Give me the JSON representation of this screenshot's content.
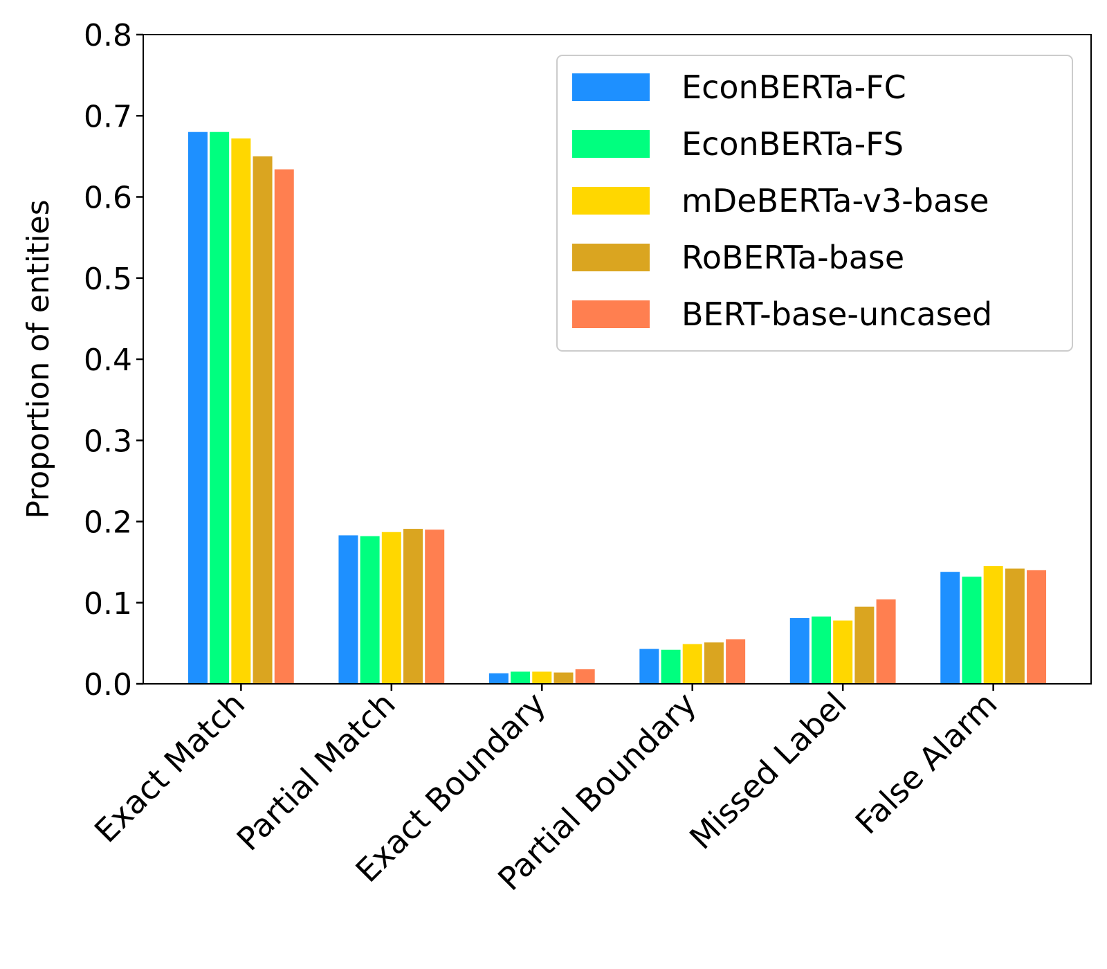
{
  "chart_data": {
    "type": "bar",
    "title": "",
    "xlabel": "",
    "ylabel": "Proportion of entities",
    "ylim": [
      0,
      0.8
    ],
    "yticks": [
      "0.0",
      "0.1",
      "0.2",
      "0.3",
      "0.4",
      "0.5",
      "0.6",
      "0.7",
      "0.8"
    ],
    "grid": false,
    "legend_position": "top-right",
    "categories": [
      "Exact Match",
      "Partial Match",
      "Exact Boundary",
      "Partial Boundary",
      "Missed Label",
      "False Alarm"
    ],
    "series": [
      {
        "name": "EconBERTa-FC",
        "color": "#1e90ff",
        "values": [
          0.68,
          0.183,
          0.013,
          0.043,
          0.081,
          0.138
        ]
      },
      {
        "name": "EconBERTa-FS",
        "color": "#00ff7f",
        "values": [
          0.68,
          0.182,
          0.015,
          0.042,
          0.083,
          0.132
        ]
      },
      {
        "name": "mDeBERTa-v3-base",
        "color": "#ffd700",
        "values": [
          0.672,
          0.187,
          0.015,
          0.049,
          0.078,
          0.145
        ]
      },
      {
        "name": "RoBERTa-base",
        "color": "#daa520",
        "values": [
          0.65,
          0.191,
          0.014,
          0.051,
          0.095,
          0.142
        ]
      },
      {
        "name": "BERT-base-uncased",
        "color": "#ff7f50",
        "values": [
          0.634,
          0.19,
          0.018,
          0.055,
          0.104,
          0.14
        ]
      }
    ]
  }
}
